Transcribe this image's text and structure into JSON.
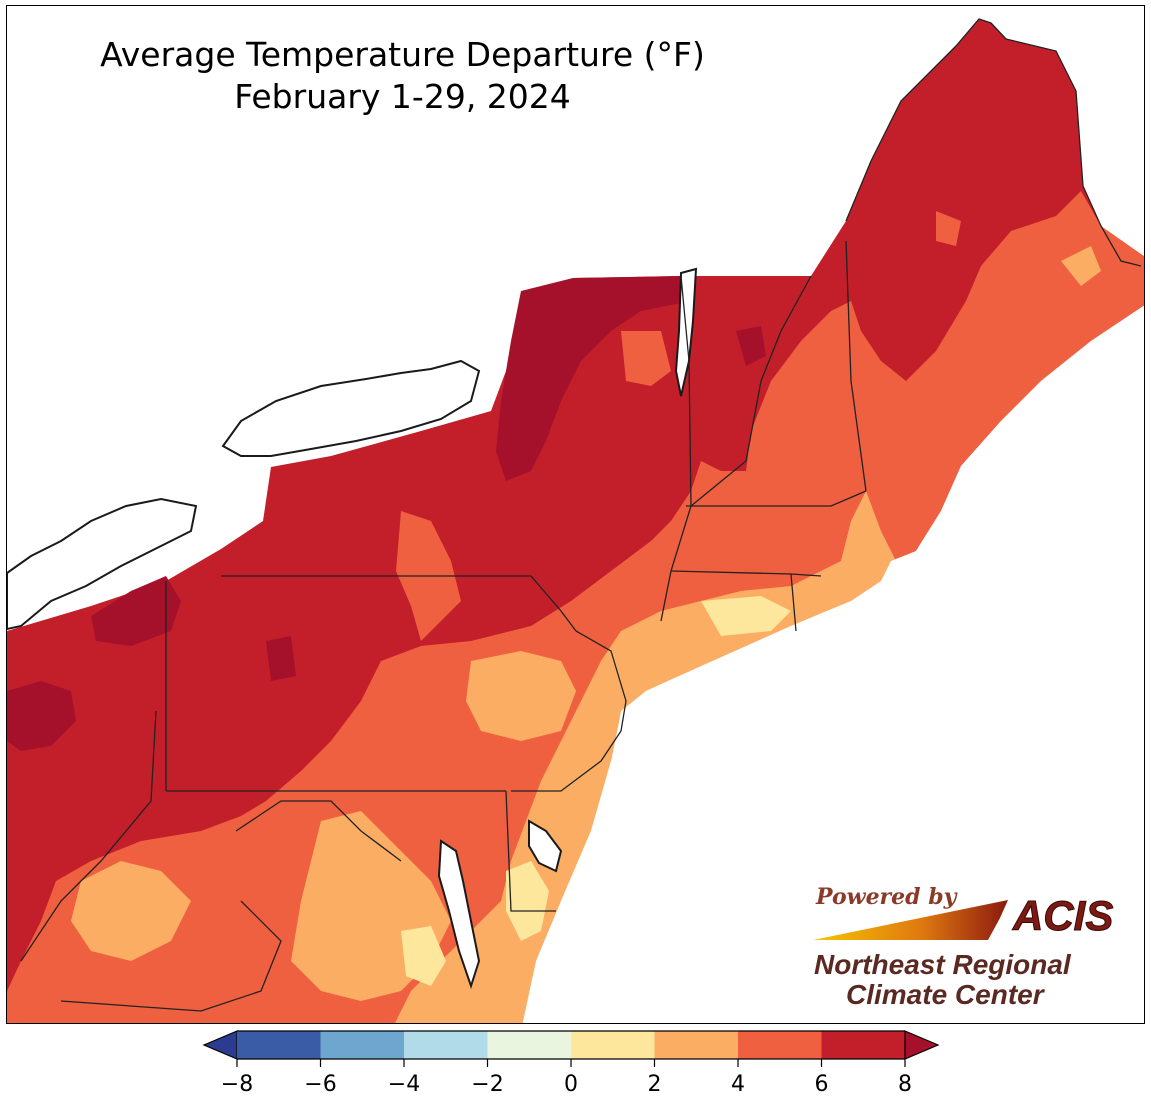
{
  "title": {
    "line1": "Average Temperature Departure (°F)",
    "line2": "February 1-29, 2024"
  },
  "colorbar": {
    "ticks": [
      "−8",
      "−6",
      "−4",
      "−2",
      "0",
      "2",
      "4",
      "6",
      "8"
    ],
    "bins": [
      {
        "range": "-8 to -6",
        "color": "#3a5ba6"
      },
      {
        "range": "-6 to -4",
        "color": "#6ea6cf"
      },
      {
        "range": "-4 to -2",
        "color": "#b2dbea"
      },
      {
        "range": "-2 to 0",
        "color": "#e9f5df"
      },
      {
        "range": "0 to 2",
        "color": "#fde79c"
      },
      {
        "range": "2 to 4",
        "color": "#fbae63"
      },
      {
        "range": "4 to 6",
        "color": "#ef6040"
      },
      {
        "range": "6 to 8",
        "color": "#c31f2b"
      }
    ],
    "under_color": "#2a3b90",
    "over_color": "#a5102a",
    "extend": "both"
  },
  "map_colors": {
    "above_8": "#a5102a",
    "six_to_8": "#c31f2b",
    "four_to_6": "#ef6040",
    "two_to_4": "#fbae63",
    "zero_to_2": "#fde79c",
    "water": "#ffffff",
    "boundary": "#000000"
  },
  "logo": {
    "powered_by": "Powered by",
    "acis": "ACIS",
    "org_line1": "Northeast Regional",
    "org_line2": "Climate Center"
  }
}
